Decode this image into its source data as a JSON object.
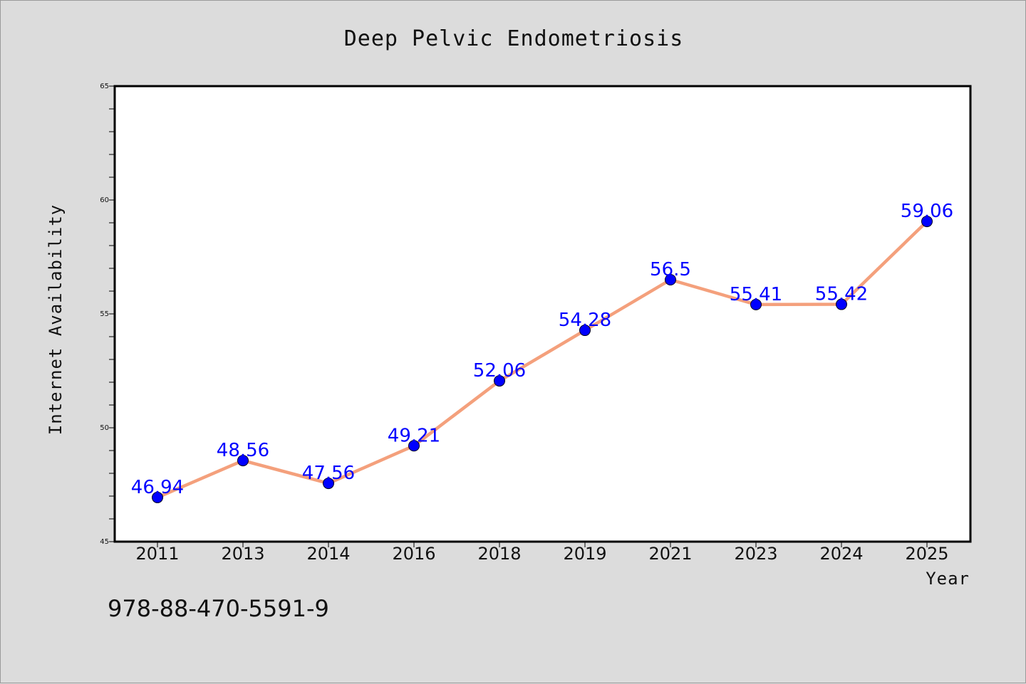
{
  "footnote": "978-88-470-5591-9",
  "chart_data": {
    "type": "line",
    "title": "Deep Pelvic Endometriosis",
    "xlabel": "Year",
    "ylabel": "Internet Availability",
    "categories": [
      "2011",
      "2013",
      "2014",
      "2016",
      "2018",
      "2019",
      "2021",
      "2023",
      "2024",
      "2025"
    ],
    "values": [
      46.94,
      48.56,
      47.56,
      49.21,
      52.06,
      54.28,
      56.5,
      55.41,
      55.42,
      59.06
    ],
    "data_labels": [
      "46.94",
      "48.56",
      "47.56",
      "49.21",
      "52.06",
      "54.28",
      "56.5",
      "55.41",
      "55.42",
      "59.06"
    ],
    "ylim": [
      45,
      65
    ],
    "yticks": [
      "45",
      "50",
      "55",
      "60",
      "65"
    ],
    "grid": false,
    "legend": "none",
    "colors": {
      "line": "#f4a07c",
      "marker": "#0000ff",
      "label": "#0000ff",
      "background": "#dcdcdc",
      "plot_background": "#ffffff"
    }
  }
}
